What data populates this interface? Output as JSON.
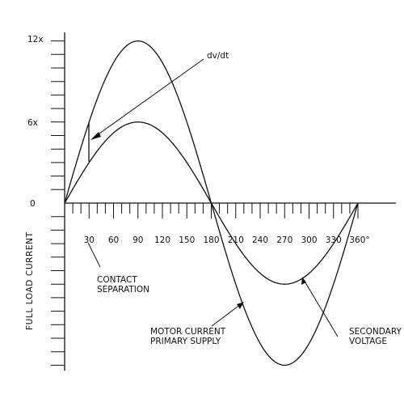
{
  "diagram": {
    "y_axis_label": "FULL LOAD CURRENT",
    "y_tick_labels": [
      "12x",
      "6x",
      "0"
    ],
    "x_tick_labels": [
      "30",
      "60",
      "90",
      "120",
      "150",
      "180",
      "210",
      "240",
      "270",
      "300",
      "330",
      "360°"
    ],
    "annotations": {
      "dvdt": "dv/dt",
      "contact_line1": "CONTACT",
      "contact_line2": "SEPARATION",
      "motor_line1": "MOTOR CURRENT",
      "motor_line2": "PRIMARY SUPPLY",
      "secondary_line1": "SECONDARY",
      "secondary_line2": "VOLTAGE"
    }
  },
  "chart_data": {
    "type": "line",
    "xlabel": "",
    "ylabel": "FULL LOAD CURRENT",
    "xlim": [
      0,
      360
    ],
    "ylim": [
      -12,
      12
    ],
    "series": [
      {
        "name": "MOTOR CURRENT PRIMARY SUPPLY",
        "x": [
          0,
          30,
          60,
          90,
          120,
          150,
          180,
          210,
          240,
          270,
          300,
          330,
          360
        ],
        "y": [
          0,
          6,
          10.4,
          12,
          10.4,
          6,
          0,
          -6,
          -10.4,
          -12,
          -10.4,
          -6,
          0
        ]
      },
      {
        "name": "SECONDARY VOLTAGE",
        "x": [
          0,
          30,
          60,
          90,
          120,
          150,
          180,
          210,
          240,
          270,
          300,
          330,
          360
        ],
        "y": [
          0,
          3,
          5.2,
          6,
          5.2,
          3,
          0,
          -3,
          -5.2,
          -6,
          -5.2,
          -3,
          0
        ]
      }
    ]
  }
}
